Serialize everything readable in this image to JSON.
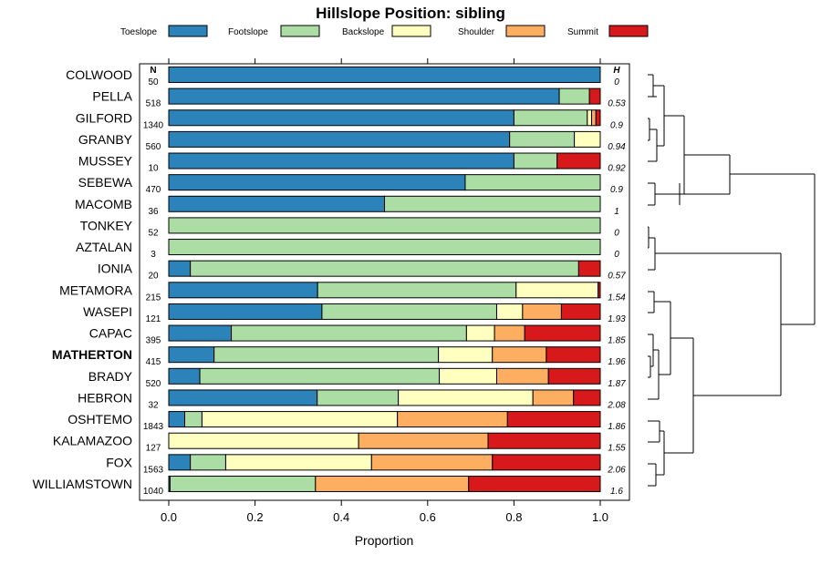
{
  "chart_data": {
    "type": "bar",
    "stacked": true,
    "orientation": "horizontal",
    "title": "Hillslope Position: sibling",
    "xlabel": "Proportion",
    "xlim": [
      0,
      1
    ],
    "xticks": [
      "0.0",
      "0.2",
      "0.4",
      "0.6",
      "0.8",
      "1.0"
    ],
    "n_header": "N",
    "h_header": "H",
    "highlight": "MATHERTON",
    "legend": [
      {
        "name": "Toeslope",
        "color": "#2b83ba"
      },
      {
        "name": "Footslope",
        "color": "#abdda4"
      },
      {
        "name": "Backslope",
        "color": "#ffffbf"
      },
      {
        "name": "Shoulder",
        "color": "#fdae61"
      },
      {
        "name": "Summit",
        "color": "#d7191c"
      }
    ],
    "rows": [
      {
        "name": "COLWOOD",
        "n": "50",
        "h": "0",
        "values": [
          1.0,
          0,
          0,
          0,
          0
        ]
      },
      {
        "name": "PELLA",
        "n": "518",
        "h": "0.53",
        "values": [
          0.905,
          0.07,
          0,
          0,
          0.025
        ]
      },
      {
        "name": "GILFORD",
        "n": "1340",
        "h": "0.9",
        "values": [
          0.8,
          0.17,
          0.01,
          0.01,
          0.01
        ]
      },
      {
        "name": "GRANBY",
        "n": "560",
        "h": "0.94",
        "values": [
          0.79,
          0.15,
          0.06,
          0,
          0
        ]
      },
      {
        "name": "MUSSEY",
        "n": "10",
        "h": "0.92",
        "values": [
          0.8,
          0.1,
          0,
          0,
          0.1
        ]
      },
      {
        "name": "SEBEWA",
        "n": "470",
        "h": "0.9",
        "values": [
          0.687,
          0.313,
          0,
          0,
          0
        ]
      },
      {
        "name": "MACOMB",
        "n": "36",
        "h": "1",
        "values": [
          0.5,
          0.5,
          0,
          0,
          0
        ]
      },
      {
        "name": "TONKEY",
        "n": "52",
        "h": "0",
        "values": [
          0,
          1.0,
          0,
          0,
          0
        ]
      },
      {
        "name": "AZTALAN",
        "n": "3",
        "h": "0",
        "values": [
          0,
          1.0,
          0,
          0,
          0
        ]
      },
      {
        "name": "IONIA",
        "n": "20",
        "h": "0.57",
        "values": [
          0.05,
          0.9,
          0,
          0,
          0.05
        ]
      },
      {
        "name": "METAMORA",
        "n": "215",
        "h": "1.54",
        "values": [
          0.345,
          0.46,
          0.19,
          0,
          0.005
        ]
      },
      {
        "name": "WASEPI",
        "n": "121",
        "h": "1.93",
        "values": [
          0.355,
          0.405,
          0.06,
          0.09,
          0.09
        ]
      },
      {
        "name": "CAPAC",
        "n": "395",
        "h": "1.85",
        "values": [
          0.145,
          0.545,
          0.065,
          0.07,
          0.175
        ]
      },
      {
        "name": "MATHERTON",
        "n": "415",
        "h": "1.96",
        "values": [
          0.105,
          0.52,
          0.125,
          0.125,
          0.125
        ]
      },
      {
        "name": "BRADY",
        "n": "520",
        "h": "1.87",
        "values": [
          0.072,
          0.555,
          0.133,
          0.12,
          0.12
        ]
      },
      {
        "name": "HEBRON",
        "n": "32",
        "h": "2.08",
        "values": [
          0.344,
          0.188,
          0.312,
          0.094,
          0.062
        ]
      },
      {
        "name": "OSHTEMO",
        "n": "1843",
        "h": "1.86",
        "values": [
          0.037,
          0.04,
          0.453,
          0.255,
          0.215
        ]
      },
      {
        "name": "KALAMAZOO",
        "n": "127",
        "h": "1.55",
        "values": [
          0,
          0,
          0.44,
          0.3,
          0.26
        ]
      },
      {
        "name": "FOX",
        "n": "1563",
        "h": "2.06",
        "values": [
          0.05,
          0.082,
          0.338,
          0.28,
          0.25
        ]
      },
      {
        "name": "WILLIAMSTOWN",
        "n": "1040",
        "h": "1.6",
        "values": [
          0.003,
          0.337,
          0,
          0.355,
          0.305
        ]
      }
    ]
  }
}
